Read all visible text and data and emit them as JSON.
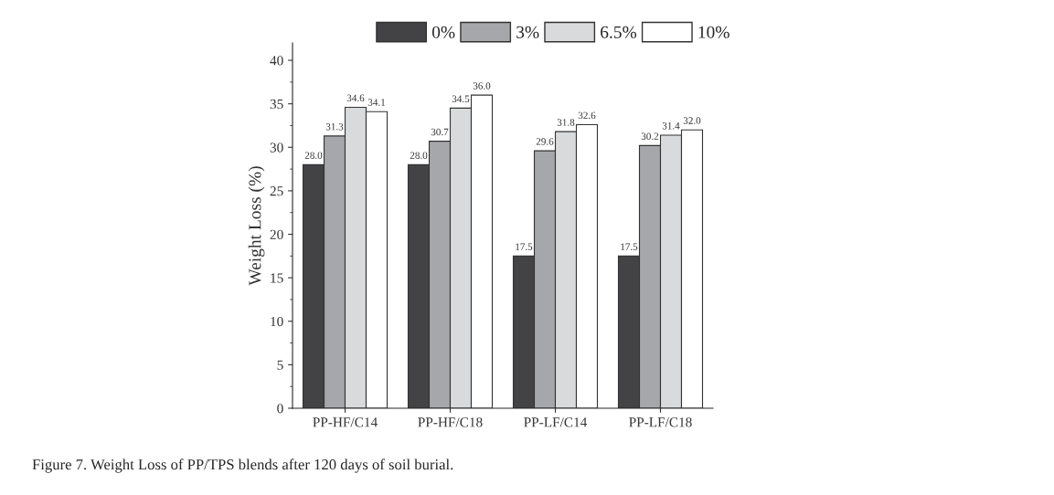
{
  "chart_data": {
    "type": "bar",
    "ylabel": "Weight Loss (%)",
    "categories": [
      "PP-HF/C14",
      "PP-HF/C18",
      "PP-LF/C14",
      "PP-LF/C18"
    ],
    "series": [
      {
        "name": "0%",
        "color": "#434345",
        "values": [
          28.0,
          28.0,
          17.5,
          17.5
        ],
        "value_labels": [
          "28.0",
          "28.0",
          "17.5",
          "17.5"
        ]
      },
      {
        "name": "3%",
        "color": "#a6a7aa",
        "values": [
          31.3,
          30.7,
          29.6,
          30.2
        ],
        "value_labels": [
          "31.3",
          "30.7",
          "29.6",
          "30.2"
        ]
      },
      {
        "name": "6.5%",
        "color": "#d9dadc",
        "values": [
          34.6,
          34.5,
          31.8,
          31.4
        ],
        "value_labels": [
          "34.6",
          "34.5",
          "31.8",
          "31.4"
        ]
      },
      {
        "name": "10%",
        "color": "#ffffff",
        "values": [
          34.1,
          36.0,
          32.6,
          32.0
        ],
        "value_labels": [
          "34.1",
          "36.0",
          "32.6",
          "32.0"
        ]
      }
    ],
    "ylim": [
      0,
      42
    ],
    "yticks": [
      0,
      5,
      10,
      15,
      20,
      25,
      30,
      35,
      40
    ],
    "legend": "top",
    "grid": false,
    "annotations": [
      "Figure 7. Weight Loss of PP/TPS blends after 120 days of soil burial."
    ]
  }
}
